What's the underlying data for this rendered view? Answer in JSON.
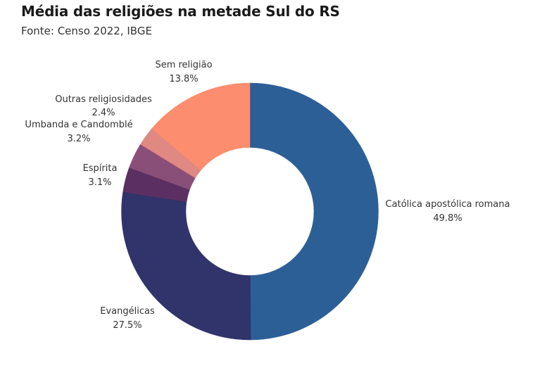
{
  "header": {
    "title": "Média das religiões na metade Sul do RS",
    "subtitle": "Fonte: Censo 2022, IBGE"
  },
  "chart_data": {
    "type": "pie",
    "donut": true,
    "title": "Média das religiões na metade Sul do RS",
    "subtitle": "Fonte: Censo 2022, IBGE",
    "unit": "%",
    "start_angle_deg": 0,
    "direction": "clockwise",
    "categories": [
      "Católica apostólica romana",
      "Evangélicas",
      "Espírita",
      "Umbanda e Candomblé",
      "Outras religiosidades",
      "Sem religião"
    ],
    "values": [
      49.8,
      27.5,
      3.1,
      3.2,
      2.4,
      13.8
    ],
    "colors": [
      "#2d5f97",
      "#30346b",
      "#5c2f63",
      "#8a4f78",
      "#e08882",
      "#fc8d6e"
    ],
    "labels": [
      {
        "name": "Católica apostólica romana",
        "value": "49.8%"
      },
      {
        "name": "Evangélicas",
        "value": "27.5%"
      },
      {
        "name": "Espírita",
        "value": "3.1%"
      },
      {
        "name": "Umbanda e Candomblé",
        "value": "3.2%"
      },
      {
        "name": "Outras religiosidades",
        "value": "2.4%"
      },
      {
        "name": "Sem religião",
        "value": "13.8%"
      }
    ],
    "legend": "none (outside labels)"
  }
}
